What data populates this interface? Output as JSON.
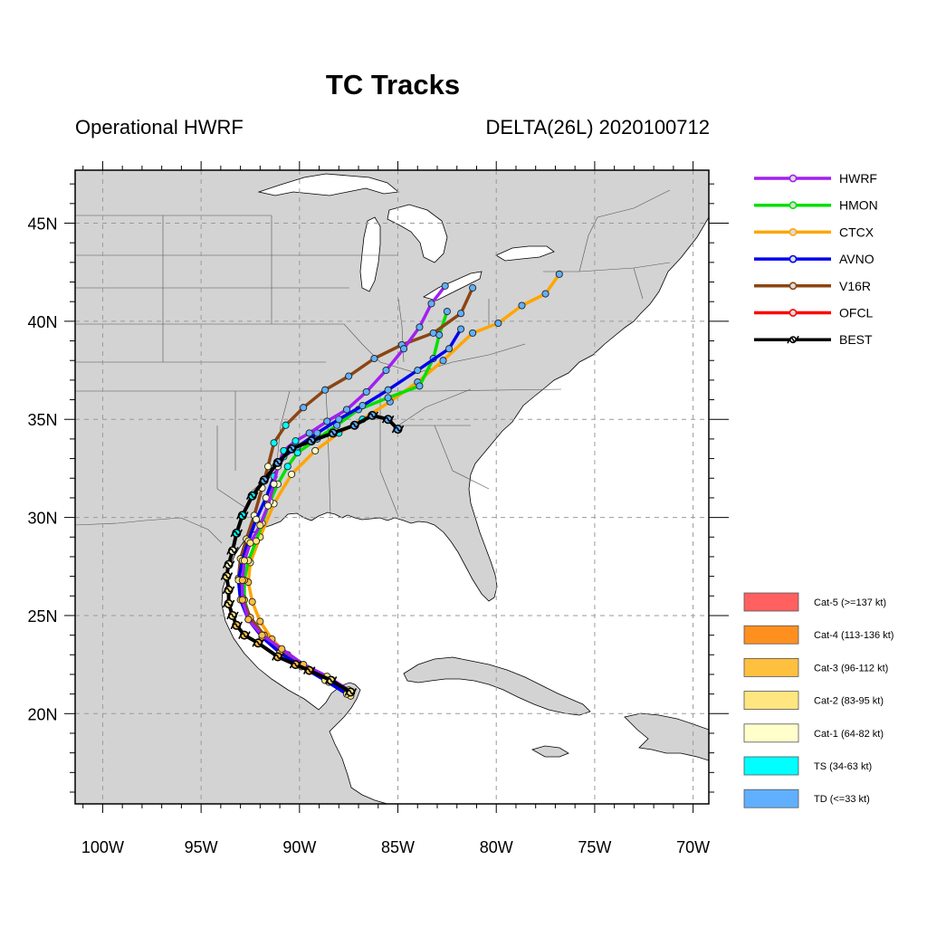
{
  "title": "TC Tracks",
  "subtitle_left": "Operational HWRF",
  "subtitle_right": "DELTA(26L) 2020100712",
  "x_ticks": [
    "100W",
    "95W",
    "90W",
    "85W",
    "80W",
    "75W",
    "70W"
  ],
  "y_ticks": [
    "45N",
    "40N",
    "35N",
    "30N",
    "25N",
    "20N"
  ],
  "legend_tracks": [
    {
      "name": "HWRF",
      "color": "#a020f0"
    },
    {
      "name": "HMON",
      "color": "#00e000"
    },
    {
      "name": "CTCX",
      "color": "#ffa500"
    },
    {
      "name": "AVNO",
      "color": "#0000ee"
    },
    {
      "name": "V16R",
      "color": "#8b4513"
    },
    {
      "name": "OFCL",
      "color": "#ff0000"
    },
    {
      "name": "BEST",
      "color": "#000000"
    }
  ],
  "legend_intensity": [
    {
      "label": "Cat-5 (>=137 kt)",
      "color": "#ff6060"
    },
    {
      "label": "Cat-4 (113-136 kt)",
      "color": "#ff9020"
    },
    {
      "label": "Cat-3 (96-112 kt)",
      "color": "#ffc040"
    },
    {
      "label": "Cat-2 (83-95 kt)",
      "color": "#ffe680"
    },
    {
      "label": "Cat-1 (64-82 kt)",
      "color": "#ffffcc"
    },
    {
      "label": "TS (34-63 kt)",
      "color": "#00ffff"
    },
    {
      "label": "TD (<=33 kt)",
      "color": "#60b0ff"
    }
  ],
  "map_extent": {
    "lon": [
      -101.4,
      -69.2
    ],
    "lat": [
      15.4,
      47.7
    ]
  },
  "tracks": {
    "HWRF": [
      [
        -87.5,
        21.2
      ],
      [
        -88.6,
        21.9
      ],
      [
        -89.8,
        22.5
      ],
      [
        -90.9,
        23.3
      ],
      [
        -91.9,
        24.0
      ],
      [
        -92.6,
        24.8
      ],
      [
        -92.9,
        25.8
      ],
      [
        -92.9,
        26.8
      ],
      [
        -92.8,
        27.8
      ],
      [
        -92.5,
        28.7
      ],
      [
        -92.0,
        29.6
      ],
      [
        -91.6,
        30.6
      ],
      [
        -91.3,
        31.7
      ],
      [
        -91.1,
        32.6
      ],
      [
        -90.8,
        33.4
      ],
      [
        -90.2,
        33.9
      ],
      [
        -89.5,
        34.3
      ],
      [
        -88.6,
        34.9
      ],
      [
        -87.6,
        35.5
      ],
      [
        -86.6,
        36.4
      ],
      [
        -85.6,
        37.5
      ],
      [
        -84.7,
        38.6
      ],
      [
        -83.9,
        39.7
      ],
      [
        -83.3,
        40.9
      ],
      [
        -82.6,
        41.8
      ]
    ],
    "HMON": [
      [
        -87.6,
        21.0
      ],
      [
        -88.7,
        21.7
      ],
      [
        -89.9,
        22.4
      ],
      [
        -91.0,
        23.2
      ],
      [
        -91.9,
        23.9
      ],
      [
        -92.5,
        24.8
      ],
      [
        -92.8,
        25.8
      ],
      [
        -92.8,
        26.8
      ],
      [
        -92.6,
        27.8
      ],
      [
        -92.2,
        28.8
      ],
      [
        -91.9,
        29.7
      ],
      [
        -91.5,
        30.8
      ],
      [
        -91.1,
        31.7
      ],
      [
        -90.6,
        32.6
      ],
      [
        -90.1,
        33.3
      ],
      [
        -89.1,
        34.0
      ],
      [
        -88.1,
        34.7
      ],
      [
        -87.0,
        35.5
      ],
      [
        -85.5,
        36.1
      ],
      [
        -83.9,
        36.7
      ],
      [
        -83.2,
        38.1
      ],
      [
        -82.9,
        39.3
      ],
      [
        -82.5,
        40.5
      ]
    ],
    "CTCX": [
      [
        -87.4,
        20.9
      ],
      [
        -88.5,
        21.6
      ],
      [
        -89.6,
        22.3
      ],
      [
        -90.6,
        23.0
      ],
      [
        -91.4,
        23.8
      ],
      [
        -92.0,
        24.7
      ],
      [
        -92.4,
        25.7
      ],
      [
        -92.6,
        26.7
      ],
      [
        -92.5,
        27.7
      ],
      [
        -92.0,
        29.0
      ],
      [
        -91.3,
        30.7
      ],
      [
        -90.4,
        32.2
      ],
      [
        -89.2,
        33.4
      ],
      [
        -88.0,
        34.3
      ],
      [
        -86.8,
        35.0
      ],
      [
        -85.4,
        35.9
      ],
      [
        -84.0,
        36.9
      ],
      [
        -82.7,
        38.0
      ],
      [
        -81.2,
        39.4
      ],
      [
        -79.9,
        39.9
      ],
      [
        -78.7,
        40.8
      ],
      [
        -77.5,
        41.4
      ],
      [
        -76.8,
        42.4
      ]
    ],
    "AVNO": [
      [
        -87.6,
        21.0
      ],
      [
        -88.7,
        21.7
      ],
      [
        -89.9,
        22.4
      ],
      [
        -91.0,
        23.1
      ],
      [
        -91.9,
        23.9
      ],
      [
        -92.6,
        24.8
      ],
      [
        -93.0,
        25.8
      ],
      [
        -93.1,
        26.8
      ],
      [
        -92.9,
        27.8
      ],
      [
        -92.6,
        28.8
      ],
      [
        -92.2,
        29.9
      ],
      [
        -91.7,
        31.0
      ],
      [
        -91.3,
        32.1
      ],
      [
        -90.8,
        33.1
      ],
      [
        -90.1,
        33.6
      ],
      [
        -89.1,
        34.3
      ],
      [
        -88.0,
        35.0
      ],
      [
        -86.8,
        35.7
      ],
      [
        -85.5,
        36.5
      ],
      [
        -84.0,
        37.5
      ],
      [
        -82.4,
        38.6
      ],
      [
        -81.8,
        39.6
      ]
    ],
    "V16R": [
      [
        -87.5,
        21.1
      ],
      [
        -88.6,
        21.8
      ],
      [
        -89.8,
        22.5
      ],
      [
        -90.9,
        23.2
      ],
      [
        -91.8,
        24.0
      ],
      [
        -92.5,
        24.9
      ],
      [
        -92.9,
        25.9
      ],
      [
        -93.1,
        26.9
      ],
      [
        -93.0,
        27.9
      ],
      [
        -92.7,
        28.9
      ],
      [
        -92.3,
        30.1
      ],
      [
        -91.9,
        31.5
      ],
      [
        -91.6,
        32.6
      ],
      [
        -91.3,
        33.8
      ],
      [
        -90.7,
        34.7
      ],
      [
        -89.8,
        35.6
      ],
      [
        -88.7,
        36.5
      ],
      [
        -87.5,
        37.2
      ],
      [
        -86.2,
        38.1
      ],
      [
        -84.8,
        38.8
      ],
      [
        -83.2,
        39.4
      ],
      [
        -81.8,
        40.4
      ],
      [
        -81.2,
        41.7
      ]
    ],
    "BEST": [
      [
        -87.4,
        21.1
      ],
      [
        -88.4,
        21.7
      ],
      [
        -89.5,
        22.2
      ],
      [
        -90.2,
        22.5
      ],
      [
        -91.1,
        22.9
      ],
      [
        -92.1,
        23.6
      ],
      [
        -92.8,
        24.0
      ],
      [
        -93.2,
        24.5
      ],
      [
        -93.4,
        25.0
      ],
      [
        -93.6,
        25.6
      ],
      [
        -93.6,
        26.3
      ],
      [
        -93.7,
        27.0
      ],
      [
        -93.6,
        27.6
      ],
      [
        -93.4,
        28.3
      ],
      [
        -93.2,
        29.2
      ],
      [
        -92.9,
        30.1
      ],
      [
        -92.4,
        31.1
      ],
      [
        -91.8,
        31.9
      ],
      [
        -91.1,
        32.8
      ],
      [
        -90.4,
        33.5
      ],
      [
        -89.4,
        33.9
      ],
      [
        -88.3,
        34.3
      ],
      [
        -87.2,
        34.7
      ],
      [
        -86.3,
        35.2
      ],
      [
        -85.5,
        35.0
      ],
      [
        -85.0,
        34.5
      ]
    ]
  }
}
